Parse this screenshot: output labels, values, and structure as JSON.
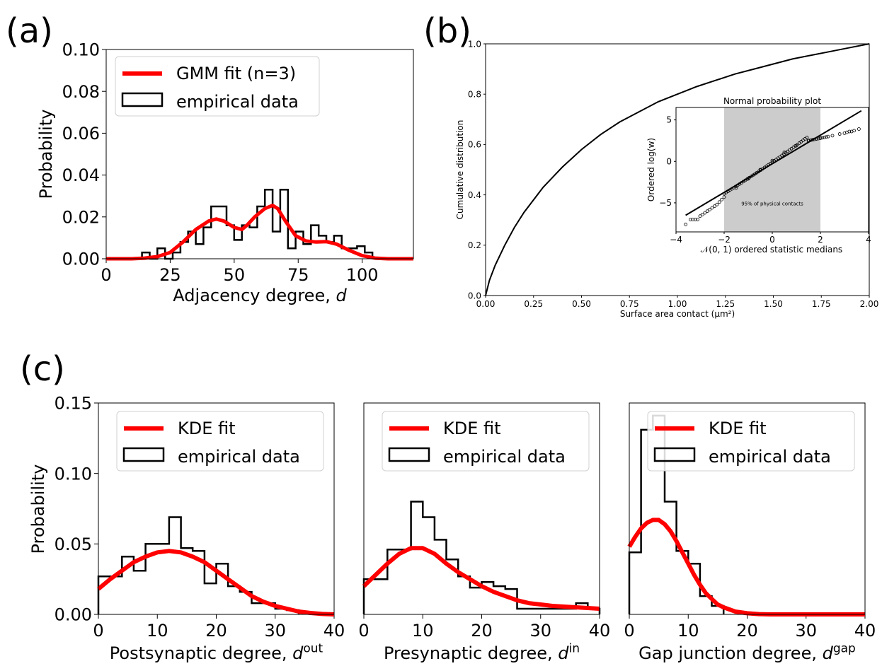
{
  "panel_labels": [
    "(a)",
    "(b)",
    "(c)"
  ],
  "chart_data": [
    {
      "id": "a",
      "type": "line",
      "xlabel": "Adjacency degree, d",
      "ylabel": "Probability",
      "xlim": [
        0,
        120
      ],
      "ylim": [
        0,
        0.1
      ],
      "xticks": [
        0,
        25,
        50,
        75,
        100
      ],
      "yticks": [
        0.0,
        0.02,
        0.04,
        0.06,
        0.08,
        0.1
      ],
      "ytick_labels": [
        "0.00",
        "0.02",
        "0.04",
        "0.06",
        "0.08",
        "0.10"
      ],
      "legend": {
        "placement": "top-left",
        "entries": [
          "GMM fit (n=3)",
          "empirical data"
        ]
      },
      "series": [
        {
          "name": "GMM fit (n=3)",
          "kind": "line",
          "color": "#ff0000",
          "x": [
            0,
            10,
            15,
            20,
            25,
            30,
            35,
            40,
            43,
            46,
            50,
            53,
            55,
            58,
            62,
            65,
            67,
            70,
            74,
            78,
            82,
            86,
            90,
            95,
            100,
            105,
            110,
            120
          ],
          "y": [
            0,
            0,
            0.0003,
            0.001,
            0.003,
            0.008,
            0.014,
            0.018,
            0.019,
            0.018,
            0.015,
            0.014,
            0.016,
            0.02,
            0.024,
            0.0255,
            0.024,
            0.018,
            0.011,
            0.0085,
            0.008,
            0.0082,
            0.007,
            0.004,
            0.0015,
            0.0003,
            0,
            0
          ]
        },
        {
          "name": "empirical data",
          "kind": "step",
          "color": "#000000",
          "edges": [
            14,
            17,
            20,
            23,
            26,
            29,
            32,
            35,
            38,
            41,
            44,
            47,
            50,
            53,
            56,
            59,
            62,
            65,
            68,
            71,
            74,
            77,
            80,
            83,
            86,
            89,
            92,
            95,
            98,
            101,
            104
          ],
          "values": [
            0.003,
            0,
            0.005,
            0,
            0.003,
            0.008,
            0.013,
            0.007,
            0.015,
            0.025,
            0.025,
            0.016,
            0.009,
            0.016,
            0.015,
            0.025,
            0.033,
            0.013,
            0.033,
            0.005,
            0.013,
            0.007,
            0.016,
            0.011,
            0.008,
            0.011,
            0.005,
            0.005,
            0.006,
            0.003
          ]
        }
      ]
    },
    {
      "id": "b",
      "type": "line",
      "xlabel": "Surface area contact (μm²)",
      "ylabel": "Cumulative distribution",
      "xlim": [
        0,
        2
      ],
      "ylim": [
        0,
        1
      ],
      "xticks": [
        0,
        0.25,
        0.5,
        0.75,
        1.0,
        1.25,
        1.5,
        1.75,
        2.0
      ],
      "xtick_labels": [
        "0.00",
        "0.25",
        "0.50",
        "0.75",
        "1.00",
        "1.25",
        "1.50",
        "1.75",
        "2.00"
      ],
      "yticks": [
        0,
        0.2,
        0.4,
        0.6,
        0.8,
        1.0
      ],
      "ytick_labels": [
        "0.0",
        "0.2",
        "0.4",
        "0.6",
        "0.8",
        "1.0"
      ],
      "series": [
        {
          "kind": "line",
          "color": "#000000",
          "x": [
            0,
            0.02,
            0.05,
            0.1,
            0.15,
            0.2,
            0.3,
            0.4,
            0.5,
            0.6,
            0.7,
            0.8,
            0.9,
            1.0,
            1.1,
            1.2,
            1.3,
            1.4,
            1.5,
            1.6,
            1.7,
            1.8,
            1.9,
            2.0
          ],
          "y": [
            0,
            0.06,
            0.12,
            0.2,
            0.27,
            0.33,
            0.43,
            0.51,
            0.58,
            0.64,
            0.69,
            0.73,
            0.77,
            0.8,
            0.83,
            0.855,
            0.88,
            0.9,
            0.92,
            0.94,
            0.955,
            0.97,
            0.985,
            1.0
          ]
        }
      ],
      "inset": {
        "title": "Normal probability plot",
        "xlabel": "𝒩(0, 1) ordered statistic medians",
        "ylabel": "Ordered log(w)",
        "xlim": [
          -4,
          4
        ],
        "ylim": [
          -8.5,
          6.5
        ],
        "xticks": [
          -4,
          -2,
          0,
          2,
          4
        ],
        "yticks": [
          -5,
          0,
          5
        ],
        "shaded_x": [
          -2,
          2
        ],
        "shaded_label": "95% of physical contacts",
        "fit_line": {
          "x": [
            -3.6,
            3.7
          ],
          "y": [
            -6.5,
            6.1
          ]
        },
        "points": {
          "x": [
            -3.6,
            -3.4,
            -3.3,
            -3.2,
            -3.1,
            -3.0,
            -2.9,
            -2.8,
            -2.7,
            -2.6,
            -2.5,
            -2.4,
            -2.3,
            -2.2,
            -2.1,
            -2.0,
            -1.5,
            -1.0,
            -0.5,
            0,
            0.5,
            1.0,
            1.5,
            2.0,
            2.5,
            2.8,
            3.0,
            3.1,
            3.2,
            3.3,
            3.4,
            3.6
          ],
          "y": [
            -7.6,
            -7.0,
            -7.0,
            -7.0,
            -7.0,
            -6.6,
            -6.4,
            -6.2,
            -6.0,
            -5.8,
            -5.6,
            -5.4,
            -5.2,
            -4.9,
            -4.6,
            -4.3,
            -3.2,
            -2.1,
            -1.0,
            0.1,
            1.1,
            1.9,
            2.5,
            2.8,
            3.1,
            3.3,
            3.4,
            3.5,
            3.6,
            3.6,
            3.7,
            3.9
          ]
        }
      }
    },
    {
      "id": "c1",
      "type": "line",
      "xlabel": "Postsynaptic degree, d",
      "xlabel_sup": "out",
      "ylabel": "Probability",
      "xlim": [
        0,
        40
      ],
      "ylim": [
        0,
        0.15
      ],
      "xticks": [
        0,
        10,
        20,
        30,
        40
      ],
      "yticks": [
        0,
        0.05,
        0.1,
        0.15
      ],
      "ytick_labels": [
        "0.00",
        "0.05",
        "0.10",
        "0.15"
      ],
      "legend": {
        "placement": "top-right",
        "entries": [
          "KDE fit",
          "empirical data"
        ]
      },
      "series": [
        {
          "name": "KDE fit",
          "kind": "line",
          "color": "#ff0000",
          "x": [
            0,
            2,
            4,
            6,
            8,
            10,
            12,
            14,
            16,
            18,
            20,
            22,
            24,
            26,
            28,
            30,
            32,
            34,
            36,
            38,
            40
          ],
          "y": [
            0.018,
            0.025,
            0.031,
            0.037,
            0.041,
            0.044,
            0.045,
            0.044,
            0.041,
            0.037,
            0.031,
            0.025,
            0.019,
            0.013,
            0.009,
            0.006,
            0.004,
            0.002,
            0.001,
            0.0003,
            0
          ]
        },
        {
          "name": "empirical data",
          "kind": "step",
          "color": "#000000",
          "edges": [
            0,
            2,
            4,
            6,
            8,
            10,
            12,
            14,
            16,
            18,
            20,
            22,
            24,
            26,
            28,
            30,
            32,
            34
          ],
          "values": [
            0.027,
            0.027,
            0.041,
            0.031,
            0.05,
            0.05,
            0.069,
            0.047,
            0.045,
            0.022,
            0.036,
            0.02,
            0.016,
            0.008,
            0.008,
            0.004,
            0.003
          ]
        }
      ]
    },
    {
      "id": "c2",
      "type": "line",
      "xlabel": "Presynaptic degree, d",
      "xlabel_sup": "in",
      "xlim": [
        0,
        40
      ],
      "ylim": [
        0,
        0.15
      ],
      "xticks": [
        0,
        10,
        20,
        30,
        40
      ],
      "legend": {
        "placement": "top-right",
        "entries": [
          "KDE fit",
          "empirical data"
        ]
      },
      "series": [
        {
          "name": "KDE fit",
          "kind": "line",
          "color": "#ff0000",
          "x": [
            0,
            2,
            4,
            6,
            8,
            10,
            12,
            14,
            16,
            18,
            20,
            22,
            24,
            26,
            28,
            30,
            32,
            34,
            36,
            38,
            40
          ],
          "y": [
            0.02,
            0.028,
            0.036,
            0.043,
            0.047,
            0.047,
            0.043,
            0.036,
            0.03,
            0.025,
            0.02,
            0.016,
            0.013,
            0.01,
            0.008,
            0.007,
            0.006,
            0.0055,
            0.005,
            0.0045,
            0.004
          ]
        },
        {
          "name": "empirical data",
          "kind": "step",
          "color": "#000000",
          "edges": [
            0,
            2,
            4,
            6,
            8,
            10,
            12,
            14,
            16,
            18,
            20,
            22,
            24,
            26,
            28,
            30,
            32,
            34,
            36,
            38,
            40
          ],
          "values": [
            0.025,
            0.025,
            0.046,
            0.046,
            0.08,
            0.069,
            0.053,
            0.039,
            0.027,
            0.019,
            0.023,
            0.02,
            0.018,
            0.004,
            0.004,
            0.004,
            0.004,
            0.004,
            0.008,
            0.004
          ]
        }
      ]
    },
    {
      "id": "c3",
      "type": "line",
      "xlabel": "Gap junction degree, d",
      "xlabel_sup": "gap",
      "xlim": [
        0,
        40
      ],
      "ylim": [
        0,
        0.15
      ],
      "xticks": [
        0,
        10,
        20,
        30,
        40
      ],
      "legend": {
        "placement": "top-right",
        "entries": [
          "KDE fit",
          "empirical data"
        ]
      },
      "series": [
        {
          "name": "KDE fit",
          "kind": "line",
          "color": "#ff0000",
          "x": [
            0,
            1,
            2,
            3,
            4,
            5,
            6,
            7,
            8,
            9,
            10,
            11,
            12,
            13,
            14,
            15,
            16,
            18,
            20,
            22,
            24,
            26,
            30,
            35,
            40
          ],
          "y": [
            0.048,
            0.055,
            0.061,
            0.065,
            0.067,
            0.067,
            0.064,
            0.059,
            0.052,
            0.044,
            0.036,
            0.028,
            0.021,
            0.015,
            0.011,
            0.007,
            0.005,
            0.002,
            0.0008,
            0.0002,
            0,
            0,
            0,
            0,
            0
          ]
        },
        {
          "name": "empirical data",
          "kind": "step",
          "color": "#000000",
          "edges": [
            0,
            2,
            4,
            6,
            8,
            10,
            12,
            14,
            16
          ],
          "values": [
            0.044,
            0.131,
            0.141,
            0.08,
            0.045,
            0.036,
            0.013,
            0.006
          ]
        }
      ]
    }
  ]
}
